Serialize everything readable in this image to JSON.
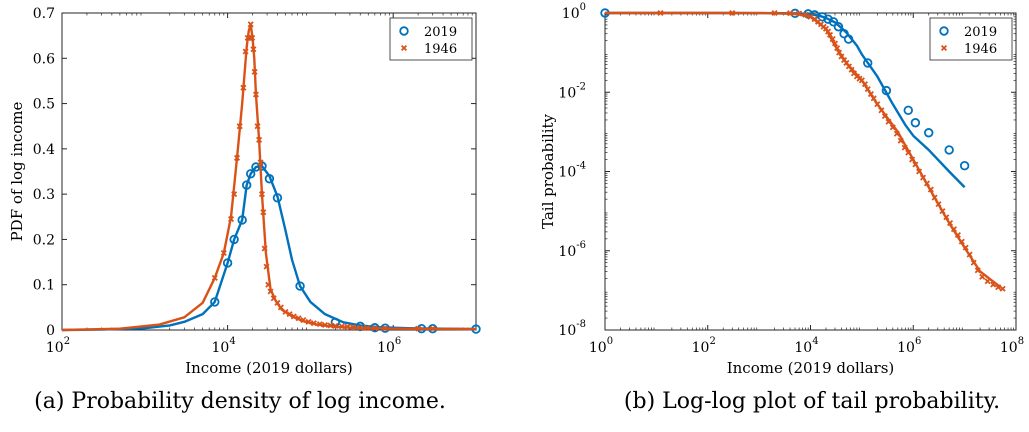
{
  "colors": {
    "series_2019": "#0072BD",
    "series_1946": "#D95319",
    "axis": "#262626"
  },
  "chart_data": [
    {
      "id": "a",
      "type": "line",
      "caption": "(a) Probability density of log income.",
      "xlabel": "Income (2019 dollars)",
      "ylabel": "PDF of log income",
      "xscale": "log",
      "xlim": [
        100,
        10000000
      ],
      "ylim": [
        0,
        0.7
      ],
      "xticks": [
        {
          "base": "10",
          "exp": "2",
          "v": 100
        },
        {
          "base": "10",
          "exp": "4",
          "v": 10000
        },
        {
          "base": "10",
          "exp": "6",
          "v": 1000000
        }
      ],
      "yticks": [
        {
          "label": "0",
          "v": 0
        },
        {
          "label": "0.1",
          "v": 0.1
        },
        {
          "label": "0.2",
          "v": 0.2
        },
        {
          "label": "0.3",
          "v": 0.3
        },
        {
          "label": "0.4",
          "v": 0.4
        },
        {
          "label": "0.5",
          "v": 0.5
        },
        {
          "label": "0.6",
          "v": 0.6
        },
        {
          "label": "0.7",
          "v": 0.7
        }
      ],
      "legend_position": "top-right",
      "series": [
        {
          "name": "2019",
          "marker": "circle",
          "color": "#0072BD",
          "line": [
            [
              100,
              0
            ],
            [
              300,
              0.001
            ],
            [
              1000,
              0.004
            ],
            [
              2000,
              0.01
            ],
            [
              3000,
              0.018
            ],
            [
              5000,
              0.035
            ],
            [
              7000,
              0.062
            ],
            [
              10000,
              0.148
            ],
            [
              12000,
              0.2
            ],
            [
              15000,
              0.243
            ],
            [
              17000,
              0.32
            ],
            [
              19000,
              0.345
            ],
            [
              22000,
              0.36
            ],
            [
              26000,
              0.362
            ],
            [
              32000,
              0.34
            ],
            [
              40000,
              0.295
            ],
            [
              50000,
              0.22
            ],
            [
              60000,
              0.155
            ],
            [
              75000,
              0.097
            ],
            [
              100000,
              0.062
            ],
            [
              150000,
              0.035
            ],
            [
              250000,
              0.017
            ],
            [
              400000,
              0.01
            ],
            [
              700000,
              0.006
            ],
            [
              1500000,
              0.004
            ],
            [
              4000000,
              0.003
            ],
            [
              10000000,
              0.002
            ]
          ],
          "points": [
            [
              7000,
              0.062
            ],
            [
              10000,
              0.148
            ],
            [
              12000,
              0.2
            ],
            [
              15000,
              0.243
            ],
            [
              17000,
              0.32
            ],
            [
              19000,
              0.345
            ],
            [
              22000,
              0.36
            ],
            [
              26000,
              0.362
            ],
            [
              32000,
              0.334
            ],
            [
              40000,
              0.292
            ],
            [
              75000,
              0.097
            ],
            [
              200000,
              0.017
            ],
            [
              400000,
              0.008
            ],
            [
              600000,
              0.005
            ],
            [
              800000,
              0.004
            ],
            [
              2200000,
              0.003
            ],
            [
              3000000,
              0.003
            ],
            [
              10000000,
              0.002
            ]
          ]
        },
        {
          "name": "1946",
          "marker": "x",
          "color": "#D95319",
          "line": [
            [
              100,
              0
            ],
            [
              500,
              0.003
            ],
            [
              1500,
              0.012
            ],
            [
              3000,
              0.028
            ],
            [
              5000,
              0.06
            ],
            [
              7000,
              0.115
            ],
            [
              9000,
              0.17
            ],
            [
              11000,
              0.25
            ],
            [
              13000,
              0.38
            ],
            [
              15000,
              0.5
            ],
            [
              17000,
              0.625
            ],
            [
              18000,
              0.66
            ],
            [
              19000,
              0.675
            ],
            [
              20000,
              0.645
            ],
            [
              21000,
              0.6
            ],
            [
              22000,
              0.52
            ],
            [
              24000,
              0.42
            ],
            [
              26000,
              0.3
            ],
            [
              29000,
              0.17
            ],
            [
              33000,
              0.09
            ],
            [
              38000,
              0.065
            ],
            [
              45000,
              0.045
            ],
            [
              60000,
              0.03
            ],
            [
              80000,
              0.02
            ],
            [
              120000,
              0.012
            ],
            [
              200000,
              0.007
            ],
            [
              400000,
              0.004
            ],
            [
              1000000,
              0.003
            ],
            [
              10000000,
              0.002
            ]
          ],
          "points": [
            [
              7000,
              0.115
            ],
            [
              9000,
              0.17
            ],
            [
              11000,
              0.245
            ],
            [
              12000,
              0.3
            ],
            [
              13000,
              0.38
            ],
            [
              14000,
              0.45
            ],
            [
              15500,
              0.535
            ],
            [
              16500,
              0.615
            ],
            [
              17500,
              0.645
            ],
            [
              18500,
              0.645
            ],
            [
              19000,
              0.675
            ],
            [
              19800,
              0.645
            ],
            [
              20500,
              0.62
            ],
            [
              21200,
              0.57
            ],
            [
              22000,
              0.52
            ],
            [
              23000,
              0.45
            ],
            [
              24000,
              0.42
            ],
            [
              25000,
              0.37
            ],
            [
              26000,
              0.3
            ],
            [
              27000,
              0.26
            ],
            [
              28000,
              0.18
            ],
            [
              29500,
              0.14
            ],
            [
              31000,
              0.1
            ],
            [
              33000,
              0.085
            ],
            [
              36000,
              0.07
            ],
            [
              40000,
              0.06
            ],
            [
              44000,
              0.05
            ],
            [
              50000,
              0.04
            ],
            [
              56000,
              0.035
            ],
            [
              63000,
              0.03
            ],
            [
              72000,
              0.026
            ],
            [
              82000,
              0.022
            ],
            [
              95000,
              0.018
            ],
            [
              110000,
              0.015
            ],
            [
              130000,
              0.013
            ],
            [
              150000,
              0.011
            ],
            [
              175000,
              0.01
            ],
            [
              200000,
              0.009
            ],
            [
              240000,
              0.008
            ],
            [
              280000,
              0.007
            ],
            [
              330000,
              0.006
            ],
            [
              400000,
              0.005
            ],
            [
              480000,
              0.0045
            ],
            [
              600000,
              0.004
            ],
            [
              800000,
              0.0035
            ],
            [
              2000000,
              0.003
            ],
            [
              3000000,
              0.003
            ]
          ]
        }
      ]
    },
    {
      "id": "b",
      "type": "line",
      "caption": "(b) Log-log plot of tail probability.",
      "xlabel": "Income (2019 dollars)",
      "ylabel": "Tail probability",
      "xscale": "log",
      "yscale": "log",
      "xlim": [
        1,
        100000000
      ],
      "ylim": [
        1e-08,
        1
      ],
      "xticks": [
        {
          "base": "10",
          "exp": "0",
          "v": 1
        },
        {
          "base": "10",
          "exp": "2",
          "v": 100
        },
        {
          "base": "10",
          "exp": "4",
          "v": 10000
        },
        {
          "base": "10",
          "exp": "6",
          "v": 1000000
        },
        {
          "base": "10",
          "exp": "8",
          "v": 100000000
        }
      ],
      "yticks": [
        {
          "base": "10",
          "exp": "0",
          "v": 1
        },
        {
          "base": "10",
          "exp": "-2",
          "v": 0.01
        },
        {
          "base": "10",
          "exp": "-4",
          "v": 0.0001
        },
        {
          "base": "10",
          "exp": "-6",
          "v": 1e-06
        },
        {
          "base": "10",
          "exp": "-8",
          "v": 1e-08
        }
      ],
      "legend_position": "top-right",
      "series": [
        {
          "name": "2019",
          "marker": "circle",
          "color": "#0072BD",
          "line": [
            [
              1,
              1
            ],
            [
              100,
              1
            ],
            [
              1000,
              0.999
            ],
            [
              5000,
              0.98
            ],
            [
              10000,
              0.93
            ],
            [
              15000,
              0.85
            ],
            [
              20000,
              0.75
            ],
            [
              30000,
              0.58
            ],
            [
              40000,
              0.42
            ],
            [
              50000,
              0.32
            ],
            [
              80000,
              0.15
            ],
            [
              100000,
              0.09
            ],
            [
              200000,
              0.025
            ],
            [
              400000,
              0.005
            ],
            [
              700000,
              0.0015
            ],
            [
              1000000,
              0.0008
            ],
            [
              2000000,
              0.00035
            ],
            [
              5000000,
              0.0001
            ],
            [
              10000000,
              4e-05
            ]
          ],
          "points": [
            [
              1,
              1
            ],
            [
              5000,
              0.98
            ],
            [
              9000,
              0.95
            ],
            [
              12000,
              0.9
            ],
            [
              17000,
              0.8
            ],
            [
              22000,
              0.7
            ],
            [
              28000,
              0.6
            ],
            [
              35000,
              0.45
            ],
            [
              45000,
              0.3
            ],
            [
              55000,
              0.22
            ],
            [
              130000,
              0.055
            ],
            [
              300000,
              0.011
            ],
            [
              800000,
              0.0035
            ],
            [
              1100000,
              0.0017
            ],
            [
              2000000,
              0.00095
            ],
            [
              5000000,
              0.00035
            ],
            [
              10000000,
              0.00014
            ]
          ]
        },
        {
          "name": "1946",
          "marker": "x",
          "color": "#D95319",
          "line": [
            [
              1,
              1
            ],
            [
              100,
              1
            ],
            [
              1000,
              0.999
            ],
            [
              5000,
              0.95
            ],
            [
              10000,
              0.8
            ],
            [
              20000,
              0.4
            ],
            [
              30000,
              0.15
            ],
            [
              50000,
              0.055
            ],
            [
              100000,
              0.02
            ],
            [
              200000,
              0.005
            ],
            [
              500000,
              0.001
            ],
            [
              1000000,
              0.0002
            ],
            [
              2000000,
              4e-05
            ],
            [
              5000000,
              5e-06
            ],
            [
              10000000,
              1.2e-06
            ],
            [
              20000000,
              3e-07
            ],
            [
              50000000,
              1.2e-07
            ]
          ],
          "points": [
            [
              12,
              1
            ],
            [
              300,
              1
            ],
            [
              2000,
              0.999
            ],
            [
              4000,
              0.99
            ],
            [
              6000,
              0.97
            ],
            [
              8000,
              0.9
            ],
            [
              10000,
              0.8
            ],
            [
              12000,
              0.7
            ],
            [
              14000,
              0.6
            ],
            [
              16000,
              0.52
            ],
            [
              18000,
              0.45
            ],
            [
              20000,
              0.4
            ],
            [
              22000,
              0.34
            ],
            [
              24000,
              0.28
            ],
            [
              27000,
              0.22
            ],
            [
              30000,
              0.17
            ],
            [
              33000,
              0.13
            ],
            [
              36000,
              0.1
            ],
            [
              40000,
              0.08
            ],
            [
              45000,
              0.065
            ],
            [
              50000,
              0.055
            ],
            [
              56000,
              0.045
            ],
            [
              63000,
              0.037
            ],
            [
              70000,
              0.03
            ],
            [
              80000,
              0.025
            ],
            [
              90000,
              0.022
            ],
            [
              100000,
              0.02
            ],
            [
              115000,
              0.016
            ],
            [
              130000,
              0.012
            ],
            [
              150000,
              0.009
            ],
            [
              170000,
              0.007
            ],
            [
              200000,
              0.005
            ],
            [
              240000,
              0.0035
            ],
            [
              280000,
              0.0025
            ],
            [
              330000,
              0.0018
            ],
            [
              400000,
              0.0013
            ],
            [
              480000,
              0.0009
            ],
            [
              570000,
              0.0006
            ],
            [
              680000,
              0.0004
            ],
            [
              800000,
              0.0003
            ],
            [
              950000,
              0.0002
            ],
            [
              1100000,
              0.00015
            ],
            [
              1300000,
              0.0001
            ],
            [
              1550000,
              7e-05
            ],
            [
              1850000,
              5e-05
            ],
            [
              2200000,
              3.5e-05
            ],
            [
              2600000,
              2.2e-05
            ],
            [
              3100000,
              1.5e-05
            ],
            [
              3700000,
              1e-05
            ],
            [
              4400000,
              7e-06
            ],
            [
              5200000,
              5e-06
            ],
            [
              6200000,
              3.5e-06
            ],
            [
              7400000,
              2.5e-06
            ],
            [
              8800000,
              1.7e-06
            ],
            [
              10500000,
              1.2e-06
            ],
            [
              12500000,
              8e-07
            ],
            [
              15000000,
              5e-07
            ],
            [
              18000000,
              3.2e-07
            ],
            [
              22000000,
              2.2e-07
            ],
            [
              28000000,
              1.7e-07
            ],
            [
              36000000,
              1.4e-07
            ],
            [
              45000000,
              1.2e-07
            ],
            [
              55000000,
              1.1e-07
            ]
          ]
        }
      ]
    }
  ]
}
